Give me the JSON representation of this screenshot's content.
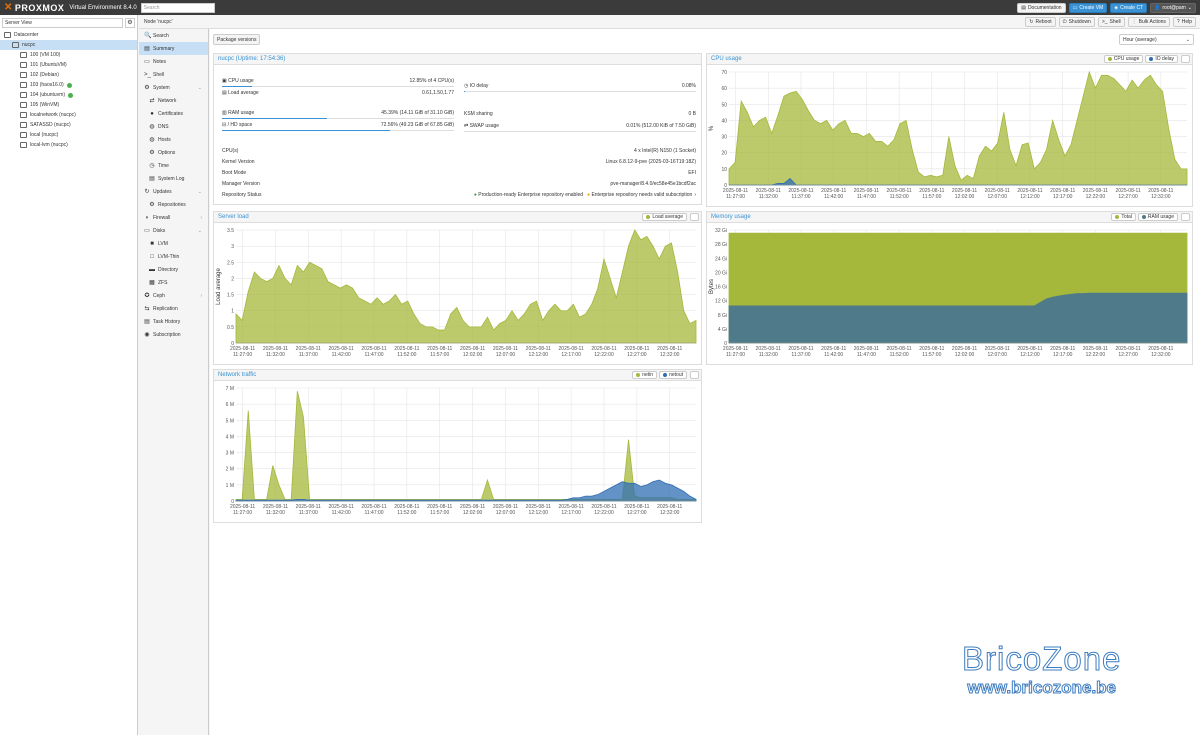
{
  "topbar": {
    "logo": "PROXMOX",
    "version": "Virtual Environment 8.4.0",
    "search_placeholder": "Search",
    "documentation": "Documentation",
    "create_vm": "Create VM",
    "create_ct": "Create CT",
    "user": "root@pam",
    "accent": "#3892d4"
  },
  "sidebar": {
    "view": "Server View",
    "tree": [
      {
        "label": "Datacenter",
        "indent": 0,
        "icon": "datacenter-icon"
      },
      {
        "label": "nucpc",
        "indent": 1,
        "icon": "node-icon",
        "selected": true
      },
      {
        "label": "100 (VM 100)",
        "indent": 2,
        "icon": "vm-icon"
      },
      {
        "label": "101 (UbuntuVM)",
        "indent": 2,
        "icon": "vm-icon"
      },
      {
        "label": "102 (Debian)",
        "indent": 2,
        "icon": "vm-icon"
      },
      {
        "label": "103 (haos16.0)",
        "indent": 2,
        "icon": "vm-icon",
        "status": "running"
      },
      {
        "label": "104 (ubuntuvm)",
        "indent": 2,
        "icon": "vm-icon",
        "status": "running"
      },
      {
        "label": "105 (WinVM)",
        "indent": 2,
        "icon": "vm-icon"
      },
      {
        "label": "localnetwork (nucpc)",
        "indent": 2,
        "icon": "network-icon"
      },
      {
        "label": "SATASSD (nucpc)",
        "indent": 2,
        "icon": "storage-icon"
      },
      {
        "label": "local (nucpc)",
        "indent": 2,
        "icon": "storage-icon"
      },
      {
        "label": "local-lvm (nucpc)",
        "indent": 2,
        "icon": "storage-icon"
      }
    ]
  },
  "node": {
    "title": "Node 'nucpc'",
    "actions": [
      "Reboot",
      "Shutdown",
      "Shell",
      "Bulk Actions",
      "Help"
    ]
  },
  "nav": [
    {
      "label": "Search",
      "sub": false,
      "icon": "🔍"
    },
    {
      "label": "Summary",
      "sub": false,
      "icon": "▤",
      "active": true
    },
    {
      "label": "Notes",
      "sub": false,
      "icon": "▭"
    },
    {
      "label": "Shell",
      "sub": false,
      "icon": ">_"
    },
    {
      "label": "System",
      "sub": false,
      "icon": "⚙",
      "expand": "⌄"
    },
    {
      "label": "Network",
      "sub": true,
      "icon": "⇄"
    },
    {
      "label": "Certificates",
      "sub": true,
      "icon": "●"
    },
    {
      "label": "DNS",
      "sub": true,
      "icon": "◍"
    },
    {
      "label": "Hosts",
      "sub": true,
      "icon": "◍"
    },
    {
      "label": "Options",
      "sub": true,
      "icon": "⚙"
    },
    {
      "label": "Time",
      "sub": true,
      "icon": "◷"
    },
    {
      "label": "System Log",
      "sub": true,
      "icon": "▤"
    },
    {
      "label": "Updates",
      "sub": false,
      "icon": "↻",
      "expand": "⌄"
    },
    {
      "label": "Repositories",
      "sub": true,
      "icon": "⚙"
    },
    {
      "label": "Firewall",
      "sub": false,
      "icon": "◗",
      "expand": "›"
    },
    {
      "label": "Disks",
      "sub": false,
      "icon": "▭",
      "expand": "⌄"
    },
    {
      "label": "LVM",
      "sub": true,
      "icon": "■"
    },
    {
      "label": "LVM-Thin",
      "sub": true,
      "icon": "□"
    },
    {
      "label": "Directory",
      "sub": true,
      "icon": "▬"
    },
    {
      "label": "ZFS",
      "sub": true,
      "icon": "▦"
    },
    {
      "label": "Ceph",
      "sub": false,
      "icon": "✪",
      "expand": "›"
    },
    {
      "label": "Replication",
      "sub": false,
      "icon": "⇆"
    },
    {
      "label": "Task History",
      "sub": false,
      "icon": "▤"
    },
    {
      "label": "Subscription",
      "sub": false,
      "icon": "◉"
    }
  ],
  "content": {
    "package_versions": "Package versions",
    "timeframe": "Hour (average)"
  },
  "status": {
    "header": "nucpc (Uptime: 17:54:36)",
    "cpu_label": "CPU usage",
    "cpu_value": "12.85% of 4 CPU(s)",
    "cpu_pct": 12.85,
    "io_label": "IO delay",
    "io_value": "0.08%",
    "io_pct": 0.08,
    "load_label": "Load average",
    "load_value": "0.61,1.50,1.77",
    "ram_label": "RAM usage",
    "ram_value": "45.39% (14.11 GiB of 31.10 GiB)",
    "ram_pct": 45.39,
    "ksm_label": "KSM sharing",
    "ksm_value": "0 B",
    "hd_label": "/ HD space",
    "hd_value": "72.56% (49.23 GiB of 67.85 GiB)",
    "hd_pct": 72.56,
    "swap_label": "SWAP usage",
    "swap_value": "0.01% (512.00 KiB of 7.50 GiB)",
    "swap_pct": 0.01,
    "cpus_label": "CPU(s)",
    "cpus_value": "4 x Intel(R) N150 (1 Socket)",
    "kernel_label": "Kernel Version",
    "kernel_value": "Linux 6.8.12-9-pve (2025-03-16T19:18Z)",
    "boot_label": "Boot Mode",
    "boot_value": "EFI",
    "manager_label": "Manager Version",
    "manager_value": "pve-manager/8.4.0/ec58e45e1bcdf2ac",
    "repo_label": "Repository Status",
    "repo_ok": "Production-ready Enterprise repository enabled",
    "repo_warn": "Enterprise repository needs valid subscription"
  },
  "chart_data": [
    {
      "id": "cpu",
      "type": "area",
      "title": "CPU usage",
      "xlabel": "",
      "ylabel": "%",
      "ylim": [
        0,
        70
      ],
      "yticks": [
        0,
        10,
        20,
        30,
        40,
        50,
        60,
        70
      ],
      "ytick_labels": [
        "0",
        "10",
        "20",
        "30",
        "40",
        "50",
        "60",
        "70"
      ],
      "xticks": [
        "2025-08-11\n11:27:00",
        "2025-08-11\n11:32:00",
        "2025-08-11\n11:37:00",
        "2025-08-11\n11:42:00",
        "2025-08-11\n11:47:00",
        "2025-08-11\n11:52:00",
        "2025-08-11\n11:57:00",
        "2025-08-11\n12:02:00",
        "2025-08-11\n12:07:00",
        "2025-08-11\n12:12:00",
        "2025-08-11\n12:17:00",
        "2025-08-11\n12:22:00",
        "2025-08-11\n12:27:00",
        "2025-08-11\n12:32:00"
      ],
      "legend": "top-right",
      "series": [
        {
          "name": "CPU usage",
          "color": "#a5b83b",
          "values": [
            10,
            14,
            52,
            45,
            36,
            40,
            42,
            32,
            43,
            55,
            57,
            58,
            53,
            46,
            40,
            38,
            40,
            34,
            38,
            40,
            32,
            32,
            30,
            32,
            27,
            27,
            24,
            28,
            38,
            40,
            22,
            8,
            5,
            6,
            5,
            6,
            30,
            12,
            3,
            6,
            4,
            18,
            24,
            21,
            26,
            45,
            22,
            12,
            25,
            26,
            10,
            14,
            22,
            40,
            28,
            18,
            25,
            40,
            55,
            70,
            60,
            68,
            68,
            66,
            62,
            58,
            65,
            60,
            65,
            68,
            62,
            58,
            35,
            16,
            10,
            10
          ]
        },
        {
          "name": "IO delay",
          "color": "#2e6db3",
          "values": [
            0,
            0,
            0,
            0,
            0,
            0,
            0,
            0,
            1,
            1,
            4,
            0,
            0,
            0,
            0,
            0,
            0,
            0,
            0,
            0,
            0,
            0,
            0,
            0,
            0,
            0,
            0,
            0,
            0,
            0,
            0,
            0,
            0,
            0,
            0,
            0,
            0,
            0,
            0,
            0,
            0,
            0,
            0,
            0,
            0,
            0,
            0,
            0,
            0,
            0,
            0,
            0,
            0,
            0,
            0,
            0,
            0,
            0,
            0,
            0,
            0,
            0,
            0,
            0,
            0,
            0,
            0,
            0,
            0,
            0,
            0,
            0,
            0,
            0,
            0,
            0
          ]
        }
      ]
    },
    {
      "id": "load",
      "type": "area",
      "title": "Server load",
      "xlabel": "",
      "ylabel": "Load average",
      "ylim": [
        0,
        3.5
      ],
      "yticks": [
        0,
        0.5,
        1,
        1.5,
        2,
        2.5,
        3,
        3.5
      ],
      "ytick_labels": [
        "0",
        "0.5",
        "1",
        "1.5",
        "2",
        "2.5",
        "3",
        "3.5"
      ],
      "xticks": [
        "2025-08-11\n11:27:00",
        "2025-08-11\n11:32:00",
        "2025-08-11\n11:37:00",
        "2025-08-11\n11:42:00",
        "2025-08-11\n11:47:00",
        "2025-08-11\n11:52:00",
        "2025-08-11\n11:57:00",
        "2025-08-11\n12:02:00",
        "2025-08-11\n12:07:00",
        "2025-08-11\n12:12:00",
        "2025-08-11\n12:17:00",
        "2025-08-11\n12:22:00",
        "2025-08-11\n12:27:00",
        "2025-08-11\n12:32:00"
      ],
      "legend": "top-right",
      "series": [
        {
          "name": "Load average",
          "color": "#a5b83b",
          "values": [
            0.9,
            0.7,
            1.6,
            2.2,
            2.0,
            1.9,
            2.0,
            2.4,
            2.0,
            1.8,
            2.4,
            2.2,
            2.5,
            2.4,
            2.3,
            1.9,
            1.8,
            1.7,
            1.8,
            1.7,
            1.4,
            1.3,
            1.2,
            1.4,
            1.2,
            1.3,
            1.5,
            1.2,
            1.3,
            0.9,
            0.6,
            0.5,
            0.5,
            0.4,
            0.4,
            0.9,
            1.1,
            0.7,
            0.5,
            0.5,
            0.5,
            0.8,
            0.4,
            0.6,
            0.7,
            1.0,
            0.7,
            0.9,
            1.2,
            1.3,
            0.7,
            1.0,
            1.2,
            1.0,
            1.0,
            1.2,
            0.8,
            0.9,
            1.2,
            1.7,
            2.6,
            2.0,
            1.4,
            2.2,
            3.0,
            3.5,
            3.2,
            3.3,
            3.0,
            2.6,
            3.0,
            3.1,
            2.2,
            1.0,
            0.6,
            0.7
          ]
        }
      ]
    },
    {
      "id": "mem",
      "type": "area",
      "title": "Memory usage",
      "xlabel": "",
      "ylabel": "Bytes",
      "ylim": [
        0,
        32
      ],
      "yticks": [
        0,
        4,
        8,
        12,
        16,
        20,
        24,
        28,
        32
      ],
      "ytick_labels": [
        "0",
        "4 Gi",
        "8 Gi",
        "12 Gi",
        "16 Gi",
        "20 Gi",
        "24 Gi",
        "28 Gi",
        "32 Gi"
      ],
      "xticks": [
        "2025-08-11\n11:27:00",
        "2025-08-11\n11:32:00",
        "2025-08-11\n11:37:00",
        "2025-08-11\n11:42:00",
        "2025-08-11\n11:47:00",
        "2025-08-11\n11:52:00",
        "2025-08-11\n11:57:00",
        "2025-08-11\n12:02:00",
        "2025-08-11\n12:07:00",
        "2025-08-11\n12:12:00",
        "2025-08-11\n12:17:00",
        "2025-08-11\n12:22:00",
        "2025-08-11\n12:27:00",
        "2025-08-11\n12:32:00"
      ],
      "legend": "top-right",
      "series": [
        {
          "name": "Total",
          "color": "#a5b83b",
          "values": [
            31.1,
            31.1,
            31.1,
            31.1,
            31.1,
            31.1,
            31.1,
            31.1,
            31.1,
            31.1,
            31.1,
            31.1,
            31.1,
            31.1,
            31.1,
            31.1,
            31.1,
            31.1,
            31.1,
            31.1,
            31.1,
            31.1,
            31.1,
            31.1,
            31.1,
            31.1,
            31.1,
            31.1,
            31.1,
            31.1,
            31.1,
            31.1,
            31.1,
            31.1,
            31.1,
            31.1,
            31.1,
            31.1,
            31.1,
            31.1,
            31.1,
            31.1,
            31.1,
            31.1,
            31.1,
            31.1,
            31.1,
            31.1,
            31.1,
            31.1,
            31.1,
            31.1,
            31.1,
            31.1,
            31.1,
            31.1,
            31.1,
            31.1,
            31.1,
            31.1,
            31.1,
            31.1,
            31.1,
            31.1,
            31.1,
            31.1,
            31.1,
            31.1,
            31.1,
            31.1,
            31.1,
            31.1,
            31.1,
            31.1,
            31.1,
            31.1
          ]
        },
        {
          "name": "RAM usage",
          "color": "#4f7a8a",
          "values": [
            10.5,
            10.5,
            10.5,
            10.5,
            10.5,
            10.5,
            10.5,
            10.5,
            10.5,
            10.5,
            10.5,
            10.5,
            10.5,
            10.5,
            10.5,
            10.5,
            10.5,
            10.5,
            10.5,
            10.5,
            10.5,
            10.5,
            10.5,
            10.5,
            10.5,
            10.5,
            10.5,
            10.5,
            10.5,
            10.5,
            10.5,
            10.5,
            10.5,
            10.5,
            10.5,
            10.5,
            10.5,
            10.5,
            10.5,
            10.5,
            10.5,
            10.5,
            10.5,
            10.5,
            10.5,
            10.5,
            10.5,
            10.5,
            10.5,
            10.5,
            10.5,
            11.5,
            12.5,
            13,
            13.3,
            13.6,
            13.8,
            14,
            14,
            14.1,
            14.1,
            14.1,
            14.1,
            14.1,
            14.1,
            14.1,
            14.1,
            14.1,
            14.1,
            14.1,
            14.1,
            14.1,
            14.1,
            14.1,
            14.1,
            14.1
          ]
        }
      ]
    },
    {
      "id": "net",
      "type": "area",
      "title": "Network traffic",
      "xlabel": "",
      "ylabel": "",
      "ylim": [
        0,
        7
      ],
      "yticks": [
        0,
        1,
        2,
        3,
        4,
        5,
        6,
        7
      ],
      "ytick_labels": [
        "0",
        "1 M",
        "2 M",
        "3 M",
        "4 M",
        "5 M",
        "6 M",
        "7 M"
      ],
      "xticks": [
        "2025-08-11\n11:27:00",
        "2025-08-11\n11:32:00",
        "2025-08-11\n11:37:00",
        "2025-08-11\n11:42:00",
        "2025-08-11\n11:47:00",
        "2025-08-11\n11:52:00",
        "2025-08-11\n11:57:00",
        "2025-08-11\n12:02:00",
        "2025-08-11\n12:07:00",
        "2025-08-11\n12:12:00",
        "2025-08-11\n12:17:00",
        "2025-08-11\n12:22:00",
        "2025-08-11\n12:27:00",
        "2025-08-11\n12:32:00"
      ],
      "legend": "top-right",
      "series": [
        {
          "name": "netin",
          "color": "#a5b83b",
          "values": [
            0.1,
            0.1,
            5.6,
            0.1,
            0.1,
            0.1,
            2.2,
            1,
            0.1,
            0.1,
            6.8,
            5.2,
            0.1,
            0.1,
            0.1,
            0.1,
            0.1,
            0.1,
            0.1,
            0.1,
            0.1,
            0.1,
            0.1,
            0.1,
            0.1,
            0.1,
            0.1,
            0.1,
            0.1,
            0.1,
            0.1,
            0.1,
            0.1,
            0.1,
            0.1,
            0.1,
            0.1,
            0.1,
            0.1,
            0.1,
            0.1,
            1.3,
            0.1,
            0.1,
            0.1,
            0.1,
            0.1,
            0.1,
            0.1,
            0.1,
            0.1,
            0.1,
            0.1,
            0.1,
            0.1,
            0.1,
            0.1,
            0.1,
            0.1,
            0.1,
            0.1,
            0.1,
            0.1,
            0.1,
            3.8,
            0.3,
            0.2,
            0.2,
            0.2,
            0.2,
            0.2,
            0.2,
            0.1,
            0.1,
            0.1,
            0.1
          ]
        },
        {
          "name": "netout",
          "color": "#2e6db3",
          "values": [
            0.05,
            0.05,
            0.05,
            0.05,
            0.05,
            0.05,
            0.05,
            0.05,
            0.05,
            0.05,
            0.1,
            0.1,
            0.05,
            0.05,
            0.05,
            0.05,
            0.05,
            0.05,
            0.05,
            0.05,
            0.05,
            0.05,
            0.05,
            0.05,
            0.05,
            0.05,
            0.05,
            0.05,
            0.05,
            0.05,
            0.05,
            0.05,
            0.05,
            0.05,
            0.05,
            0.05,
            0.05,
            0.05,
            0.05,
            0.05,
            0.05,
            0.05,
            0.05,
            0.05,
            0.05,
            0.05,
            0.05,
            0.05,
            0.05,
            0.05,
            0.05,
            0.05,
            0.05,
            0.05,
            0.1,
            0.2,
            0.2,
            0.3,
            0.3,
            0.4,
            0.6,
            0.8,
            1.0,
            1.2,
            1.1,
            1.1,
            0.9,
            1.0,
            1.2,
            1.3,
            1.1,
            1.0,
            0.8,
            0.6,
            0.3,
            0.1
          ]
        }
      ]
    }
  ],
  "watermark": {
    "line1": "BricoZone",
    "line2": "www.bricozone.be"
  }
}
